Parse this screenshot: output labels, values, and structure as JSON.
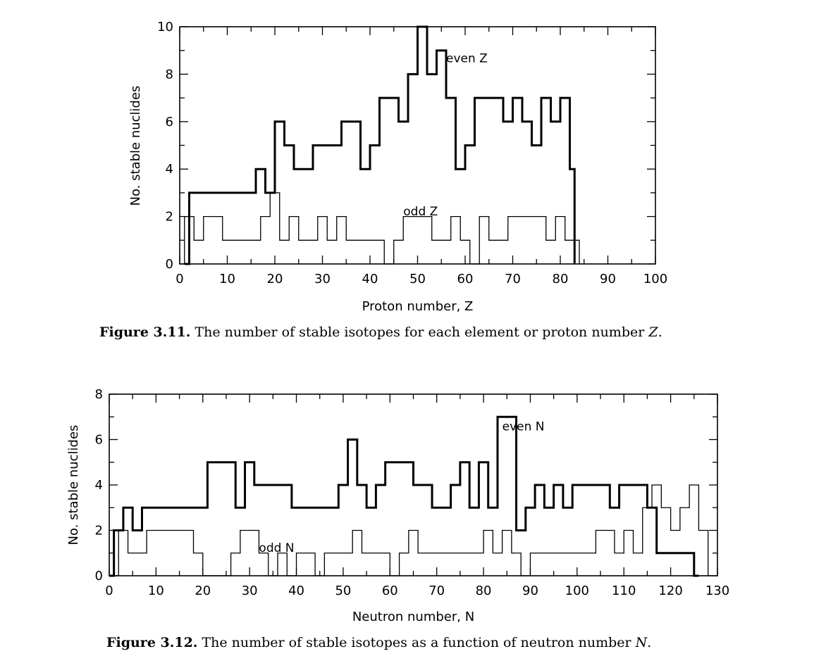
{
  "chart_data": [
    {
      "type": "line",
      "step": true,
      "xlabel": "Proton number, Z",
      "ylabel": "No. stable nuclides",
      "xlim": [
        0,
        100
      ],
      "ylim": [
        0,
        10
      ],
      "xticks": [
        0,
        10,
        20,
        30,
        40,
        50,
        60,
        70,
        80,
        90,
        100
      ],
      "yticks": [
        0,
        2,
        4,
        6,
        8,
        10
      ],
      "caption_label": "Figure 3.11.",
      "caption_text": "The number of stable isotopes for each element or proton number",
      "caption_var": "Z",
      "caption_end": ".",
      "series": [
        {
          "name": "even Z",
          "label_at": [
            56,
            8.5
          ],
          "x": [
            1,
            2,
            16,
            18,
            19,
            20,
            22,
            24,
            26,
            28,
            30,
            32,
            34,
            36,
            38,
            40,
            42,
            44,
            46,
            48,
            50,
            52,
            54,
            56,
            58,
            60,
            62,
            64,
            66,
            68,
            70,
            72,
            74,
            76,
            78,
            80,
            82
          ],
          "y": [
            0,
            3,
            4,
            3,
            3,
            6,
            5,
            4,
            4,
            5,
            5,
            5,
            6,
            6,
            4,
            5,
            7,
            7,
            6,
            8,
            10,
            8,
            9,
            7,
            4,
            5,
            7,
            7,
            7,
            6,
            7,
            6,
            5,
            7,
            6,
            7,
            4
          ],
          "x_end": 83
        },
        {
          "name": "odd Z",
          "label_at": [
            47,
            2.05
          ],
          "x": [
            1,
            3,
            5,
            9,
            15,
            17,
            19,
            21,
            23,
            25,
            27,
            29,
            31,
            33,
            35,
            37,
            39,
            41,
            43,
            45,
            47,
            49,
            51,
            53,
            55,
            57,
            59,
            61,
            63,
            65,
            67,
            69,
            71,
            73,
            75,
            77,
            79,
            81,
            83
          ],
          "y": [
            2,
            1,
            2,
            1,
            1,
            2,
            3,
            1,
            2,
            1,
            1,
            2,
            1,
            2,
            1,
            1,
            1,
            1,
            0,
            1,
            2,
            2,
            2,
            1,
            1,
            2,
            1,
            0,
            2,
            1,
            1,
            2,
            2,
            2,
            2,
            1,
            2,
            1,
            1
          ],
          "x_end": 84
        }
      ]
    },
    {
      "type": "line",
      "step": true,
      "xlabel": "Neutron number, N",
      "ylabel": "No. stable nuclides",
      "xlim": [
        0,
        130
      ],
      "ylim": [
        0,
        8
      ],
      "xticks": [
        0,
        10,
        20,
        30,
        40,
        50,
        60,
        70,
        80,
        90,
        100,
        110,
        120,
        130
      ],
      "yticks": [
        0,
        2,
        4,
        6,
        8
      ],
      "caption_label": "Figure 3.12.",
      "caption_text": "The number of stable isotopes as a function of neutron number",
      "caption_var": "N",
      "caption_end": ".",
      "series": [
        {
          "name": "even N",
          "label_at": [
            84,
            6.4
          ],
          "x": [
            0,
            1,
            3,
            5,
            7,
            19,
            21,
            27,
            29,
            31,
            39,
            49,
            51,
            53,
            55,
            57,
            59,
            65,
            69,
            73,
            75,
            77,
            79,
            81,
            83,
            87,
            89,
            91,
            93,
            95,
            97,
            99,
            107,
            109,
            115,
            117,
            123,
            125
          ],
          "y": [
            0,
            2,
            3,
            2,
            3,
            3,
            5,
            3,
            5,
            4,
            3,
            4,
            6,
            4,
            3,
            4,
            5,
            4,
            3,
            4,
            5,
            3,
            5,
            3,
            7,
            2,
            3,
            4,
            3,
            4,
            3,
            4,
            3,
            4,
            3,
            1,
            1,
            0
          ],
          "x_end": 126
        },
        {
          "name": "odd N",
          "label_at": [
            32,
            1.05
          ],
          "x": [
            1,
            2,
            4,
            8,
            18,
            20,
            26,
            28,
            32,
            34,
            36,
            38,
            40,
            44,
            46,
            52,
            54,
            60,
            62,
            64,
            66,
            80,
            82,
            84,
            86,
            88,
            90,
            104,
            108,
            110,
            112,
            114,
            116,
            118,
            120,
            122,
            124,
            126
          ],
          "y": [
            0,
            2,
            1,
            2,
            1,
            0,
            1,
            2,
            1,
            0,
            1,
            0,
            1,
            0,
            1,
            2,
            1,
            0,
            1,
            2,
            1,
            2,
            1,
            2,
            1,
            0,
            1,
            2,
            1,
            2,
            1,
            3,
            4,
            3,
            2,
            3,
            4,
            2
          ],
          "x_end": 128
        }
      ]
    }
  ]
}
